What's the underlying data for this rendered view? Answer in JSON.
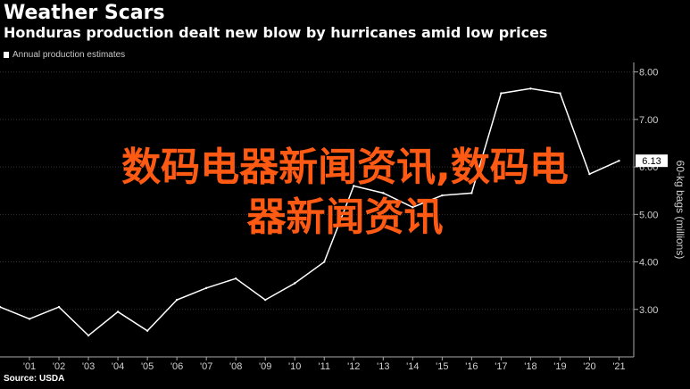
{
  "header": {
    "title": "Weather Scars",
    "subtitle": "Honduras production dealt new blow by hurricanes amid low prices"
  },
  "source": "Source: USDA",
  "overlay": {
    "line1": "数码电器新闻资讯,数码电",
    "line2": "器新闻资讯"
  },
  "colors": {
    "background": "#000000",
    "line": "#ffffff",
    "grid": "#333333",
    "overlay_text": "#ff5a14",
    "last_value_box": "#ffffff"
  },
  "chart_data": {
    "type": "line",
    "series": [
      {
        "name": "Annual production estimates",
        "x": [
          "2000",
          "2001",
          "2002",
          "2003",
          "2004",
          "2005",
          "2006",
          "2007",
          "2008",
          "2009",
          "2010",
          "2011",
          "2012",
          "2013",
          "2014",
          "2015",
          "2016",
          "2017",
          "2018",
          "2019",
          "2020",
          "2021"
        ],
        "values": [
          3.05,
          2.8,
          3.05,
          2.45,
          2.95,
          2.55,
          3.2,
          3.45,
          3.65,
          3.2,
          3.55,
          4.0,
          5.6,
          5.45,
          5.15,
          5.4,
          5.45,
          7.55,
          7.65,
          7.55,
          5.85,
          6.13
        ]
      }
    ],
    "xticks": [
      "'01",
      "'02",
      "'03",
      "'04",
      "'05",
      "'06",
      "'07",
      "'08",
      "'09",
      "'10",
      "'11",
      "'12",
      "'13",
      "'14",
      "'15",
      "'16",
      "'17",
      "'18",
      "'19",
      "'20",
      "'21"
    ],
    "yticks": [
      "3.00",
      "4.00",
      "5.00",
      "6.00",
      "7.00",
      "8.00"
    ],
    "ylim": [
      2.0,
      8.2
    ],
    "ylabel": "60-kg bags (millions)",
    "last_value_label": "6.13",
    "y_axis_side": "right",
    "grid": "horizontal",
    "legend_position": "top-left"
  }
}
